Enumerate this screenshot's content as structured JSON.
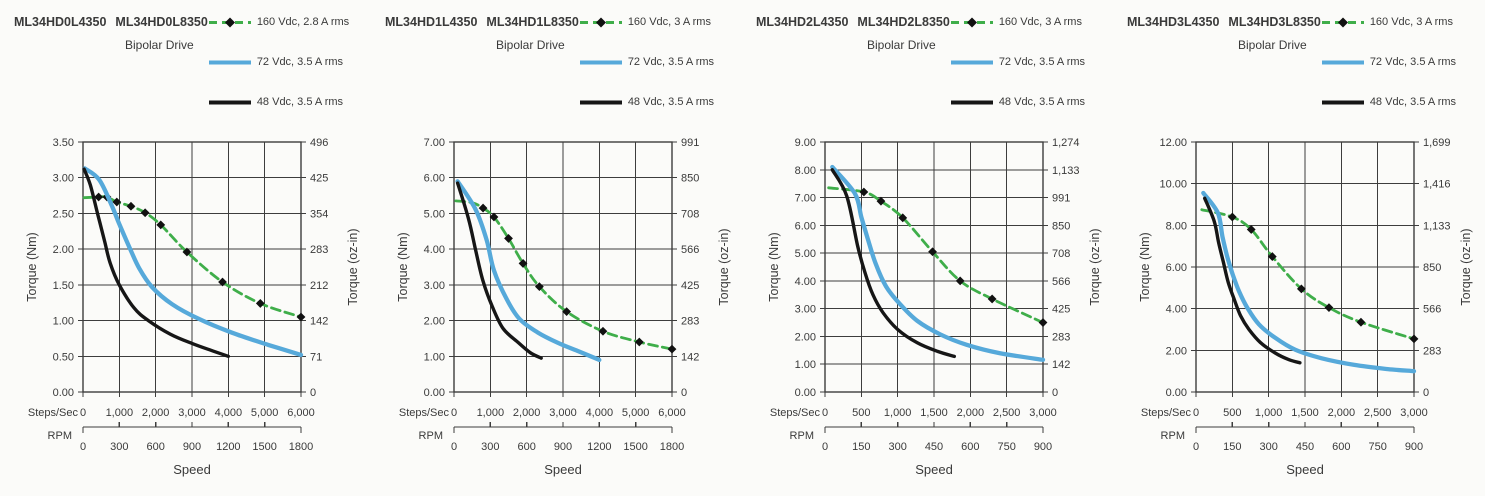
{
  "style": {
    "green": "#3fae4a",
    "blue": "#56a9da",
    "black": "#161616",
    "grid": "#3d3d3d",
    "text": "#3a3a3a",
    "background": "#fbfbf9"
  },
  "charts": [
    {
      "title_left": "ML34HD0L4350",
      "title_right": "ML34HD0L8350",
      "subtitle": "Bipolar Drive",
      "legend": [
        "160 Vdc, 2.8 A rms",
        "72 Vdc, 3.5 A rms",
        "48 Vdc, 3.5 A rms"
      ],
      "chart_data": {
        "type": "line",
        "title": "ML34HD0L4350 ML34HD0L8350 Bipolar Drive",
        "xlabel": "Speed",
        "x_max": 6000,
        "x_rows": [
          {
            "name": "Steps/Sec",
            "ticks": [
              "0",
              "1,000",
              "2,000",
              "3,000",
              "4,000",
              "5,000",
              "6,000"
            ]
          },
          {
            "name": "RPM",
            "ticks": [
              "0",
              "300",
              "600",
              "900",
              "1200",
              "1500",
              "1800"
            ]
          }
        ],
        "y_left": {
          "label": "Torque (Nm)",
          "max": 3.5,
          "ticks": [
            "3.50",
            "3.00",
            "2.50",
            "2.00",
            "1.50",
            "1.00",
            "0.50",
            "0.00"
          ]
        },
        "y_right": {
          "label": "Torque (oz-in)",
          "ticks": [
            "496",
            "425",
            "354",
            "283",
            "212",
            "142",
            "71",
            "0"
          ]
        },
        "series": [
          {
            "name": "160 Vdc, 2.8 A rms",
            "color": "green",
            "dash": true,
            "marker": "diamond",
            "marker_skip": 1,
            "width": 2.8,
            "points": [
              [
                30,
                2.72
              ],
              [
                430,
                2.73
              ],
              [
                660,
                2.73
              ],
              [
                930,
                2.66
              ],
              [
                1320,
                2.6
              ],
              [
                1710,
                2.51
              ],
              [
                2140,
                2.34
              ],
              [
                2860,
                1.96
              ],
              [
                3840,
                1.54
              ],
              [
                4880,
                1.24
              ],
              [
                6000,
                1.05
              ]
            ]
          },
          {
            "name": "72 Vdc, 3.5 A rms",
            "color": "blue",
            "dash": false,
            "width": 4.3,
            "points": [
              [
                50,
                3.13
              ],
              [
                450,
                2.97
              ],
              [
                800,
                2.6
              ],
              [
                1000,
                2.35
              ],
              [
                1300,
                2.0
              ],
              [
                1550,
                1.73
              ],
              [
                1900,
                1.47
              ],
              [
                2450,
                1.23
              ],
              [
                3200,
                1.02
              ],
              [
                4100,
                0.83
              ],
              [
                5100,
                0.66
              ],
              [
                6000,
                0.52
              ]
            ]
          },
          {
            "name": "48 Vdc, 3.5 A rms",
            "color": "black",
            "dash": false,
            "width": 3.4,
            "points": [
              [
                30,
                3.12
              ],
              [
                200,
                2.9
              ],
              [
                400,
                2.5
              ],
              [
                600,
                2.1
              ],
              [
                750,
                1.8
              ],
              [
                1000,
                1.5
              ],
              [
                1400,
                1.18
              ],
              [
                1800,
                1.0
              ],
              [
                2400,
                0.81
              ],
              [
                3000,
                0.68
              ],
              [
                3600,
                0.57
              ],
              [
                4000,
                0.5
              ]
            ]
          }
        ]
      }
    },
    {
      "title_left": "ML34HD1L4350",
      "title_right": "ML34HD1L8350",
      "subtitle": "Bipolar Drive",
      "legend": [
        "160 Vdc, 3 A rms",
        "72 Vdc, 3.5 A rms",
        "48 Vdc, 3.5 A rms"
      ],
      "chart_data": {
        "type": "line",
        "title": "ML34HD1L4350 ML34HD1L8350 Bipolar Drive",
        "xlabel": "Speed",
        "x_max": 6000,
        "x_rows": [
          {
            "name": "Steps/Sec",
            "ticks": [
              "0",
              "1,000",
              "2,000",
              "3,000",
              "4,000",
              "5,000",
              "6,000"
            ]
          },
          {
            "name": "RPM",
            "ticks": [
              "0",
              "300",
              "600",
              "900",
              "1200",
              "1500",
              "1800"
            ]
          }
        ],
        "y_left": {
          "label": "Torque (Nm)",
          "max": 7,
          "ticks": [
            "7.00",
            "6.00",
            "5.00",
            "4.00",
            "3.00",
            "2.00",
            "1.00",
            "0.00"
          ]
        },
        "y_right": {
          "label": "Torque (oz-in)",
          "ticks": [
            "991",
            "850",
            "708",
            "566",
            "425",
            "283",
            "142",
            "0"
          ]
        },
        "series": [
          {
            "name": "160 Vdc, 3 A rms",
            "color": "green",
            "dash": true,
            "marker": "diamond",
            "marker_skip": 2,
            "width": 2.8,
            "points": [
              [
                50,
                5.35
              ],
              [
                500,
                5.3
              ],
              [
                800,
                5.15
              ],
              [
                1100,
                4.9
              ],
              [
                1500,
                4.3
              ],
              [
                1900,
                3.6
              ],
              [
                2350,
                2.95
              ],
              [
                3100,
                2.25
              ],
              [
                4100,
                1.7
              ],
              [
                5100,
                1.4
              ],
              [
                6000,
                1.2
              ]
            ]
          },
          {
            "name": "72 Vdc, 3.5 A rms",
            "color": "blue",
            "dash": false,
            "width": 4.3,
            "points": [
              [
                100,
                5.9
              ],
              [
                600,
                5.1
              ],
              [
                900,
                4.25
              ],
              [
                1100,
                3.4
              ],
              [
                1450,
                2.6
              ],
              [
                1800,
                2.05
              ],
              [
                2300,
                1.67
              ],
              [
                2850,
                1.38
              ],
              [
                3400,
                1.15
              ],
              [
                4000,
                0.9
              ]
            ]
          },
          {
            "name": "48 Vdc, 3.5 A rms",
            "color": "black",
            "dash": false,
            "width": 3.4,
            "points": [
              [
                100,
                5.85
              ],
              [
                400,
                4.85
              ],
              [
                600,
                3.95
              ],
              [
                800,
                3.1
              ],
              [
                1050,
                2.4
              ],
              [
                1350,
                1.78
              ],
              [
                1750,
                1.4
              ],
              [
                2100,
                1.1
              ],
              [
                2400,
                0.95
              ]
            ]
          }
        ]
      }
    },
    {
      "title_left": "ML34HD2L4350",
      "title_right": "ML34HD2L8350",
      "subtitle": "Bipolar Drive",
      "legend": [
        "160 Vdc, 3 A rms",
        "72 Vdc, 3.5 A rms",
        "48 Vdc, 3.5 A rms"
      ],
      "chart_data": {
        "type": "line",
        "title": "ML34HD2L4350 ML34HD2L8350 Bipolar Drive",
        "xlabel": "Speed",
        "x_max": 3000,
        "x_rows": [
          {
            "name": "Steps/Sec",
            "ticks": [
              "0",
              "500",
              "1,000",
              "1,500",
              "2,000",
              "2,500",
              "3,000"
            ]
          },
          {
            "name": "RPM",
            "ticks": [
              "0",
              "150",
              "300",
              "450",
              "600",
              "750",
              "900"
            ]
          }
        ],
        "y_left": {
          "label": "Torque (Nm)",
          "max": 9,
          "ticks": [
            "9.00",
            "8.00",
            "7.00",
            "6.00",
            "5.00",
            "4.00",
            "3.00",
            "2.00",
            "1.00",
            "0.00"
          ]
        },
        "y_right": {
          "label": "Torque (oz-in)",
          "ticks": [
            "1,274",
            "1,133",
            "991",
            "850",
            "708",
            "566",
            "425",
            "283",
            "142",
            "0"
          ]
        },
        "series": [
          {
            "name": "160 Vdc, 3 A rms",
            "color": "green",
            "dash": true,
            "marker": "diamond",
            "marker_skip": 1,
            "width": 2.8,
            "points": [
              [
                50,
                7.35
              ],
              [
                535,
                7.2
              ],
              [
                770,
                6.87
              ],
              [
                1070,
                6.27
              ],
              [
                1480,
                5.05
              ],
              [
                1860,
                4.0
              ],
              [
                2300,
                3.35
              ],
              [
                3000,
                2.5
              ]
            ]
          },
          {
            "name": "72 Vdc, 3.5 A rms",
            "color": "blue",
            "dash": false,
            "width": 4.3,
            "points": [
              [
                100,
                8.1
              ],
              [
                410,
                7.15
              ],
              [
                500,
                6.3
              ],
              [
                590,
                5.5
              ],
              [
                700,
                4.6
              ],
              [
                840,
                3.8
              ],
              [
                1020,
                3.2
              ],
              [
                1270,
                2.56
              ],
              [
                1590,
                2.07
              ],
              [
                1950,
                1.7
              ],
              [
                2400,
                1.4
              ],
              [
                3000,
                1.16
              ]
            ]
          },
          {
            "name": "48 Vdc, 3.5 A rms",
            "color": "black",
            "dash": false,
            "width": 3.4,
            "points": [
              [
                100,
                8.0
              ],
              [
                300,
                7.05
              ],
              [
                450,
                5.25
              ],
              [
                550,
                4.3
              ],
              [
                660,
                3.5
              ],
              [
                800,
                2.85
              ],
              [
                1000,
                2.25
              ],
              [
                1270,
                1.77
              ],
              [
                1550,
                1.46
              ],
              [
                1780,
                1.28
              ]
            ]
          }
        ]
      }
    },
    {
      "title_left": "ML34HD3L4350",
      "title_right": "ML34HD3L8350",
      "subtitle": "Bipolar Drive",
      "legend": [
        "160 Vdc, 3 A rms",
        "72 Vdc, 3.5 A rms",
        "48 Vdc, 3.5 A rms"
      ],
      "chart_data": {
        "type": "line",
        "title": "ML34HD3L4350 ML34HD3L8350 Bipolar Drive",
        "xlabel": "Speed",
        "x_max": 3000,
        "x_rows": [
          {
            "name": "Steps/Sec",
            "ticks": [
              "0",
              "500",
              "1,000",
              "1,500",
              "2,000",
              "2,500",
              "3,000"
            ]
          },
          {
            "name": "RPM",
            "ticks": [
              "0",
              "150",
              "300",
              "450",
              "600",
              "750",
              "900"
            ]
          }
        ],
        "y_left": {
          "label": "Torque (Nm)",
          "max": 12,
          "ticks": [
            "12.00",
            "10.00",
            "8.00",
            "6.00",
            "4.00",
            "2.00",
            "0.00"
          ]
        },
        "y_right": {
          "label": "Torque (oz-in)",
          "ticks": [
            "1,699",
            "1,416",
            "1,133",
            "850",
            "566",
            "283",
            "0"
          ]
        },
        "series": [
          {
            "name": "160 Vdc, 3 A rms",
            "color": "green",
            "dash": true,
            "marker": "diamond",
            "marker_skip": 1,
            "width": 2.8,
            "points": [
              [
                80,
                8.75
              ],
              [
                500,
                8.4
              ],
              [
                760,
                7.8
              ],
              [
                1050,
                6.5
              ],
              [
                1450,
                4.95
              ],
              [
                1830,
                4.05
              ],
              [
                2270,
                3.35
              ],
              [
                3000,
                2.55
              ]
            ]
          },
          {
            "name": "72 Vdc, 3.5 A rms",
            "color": "blue",
            "dash": false,
            "width": 4.3,
            "points": [
              [
                100,
                9.55
              ],
              [
                300,
                8.6
              ],
              [
                365,
                7.45
              ],
              [
                430,
                6.5
              ],
              [
                500,
                5.7
              ],
              [
                590,
                4.85
              ],
              [
                705,
                4.05
              ],
              [
                865,
                3.25
              ],
              [
                1090,
                2.6
              ],
              [
                1365,
                2.03
              ],
              [
                1730,
                1.62
              ],
              [
                2180,
                1.3
              ],
              [
                2640,
                1.1
              ],
              [
                3000,
                1.0
              ]
            ]
          },
          {
            "name": "48 Vdc, 3.5 A rms",
            "color": "black",
            "dash": false,
            "width": 3.4,
            "points": [
              [
                120,
                9.3
              ],
              [
                250,
                8.2
              ],
              [
                310,
                7.2
              ],
              [
                375,
                6.25
              ],
              [
                445,
                5.25
              ],
              [
                525,
                4.45
              ],
              [
                615,
                3.65
              ],
              [
                730,
                3.0
              ],
              [
                890,
                2.36
              ],
              [
                1090,
                1.87
              ],
              [
                1280,
                1.55
              ],
              [
                1430,
                1.4
              ]
            ]
          }
        ]
      }
    }
  ]
}
